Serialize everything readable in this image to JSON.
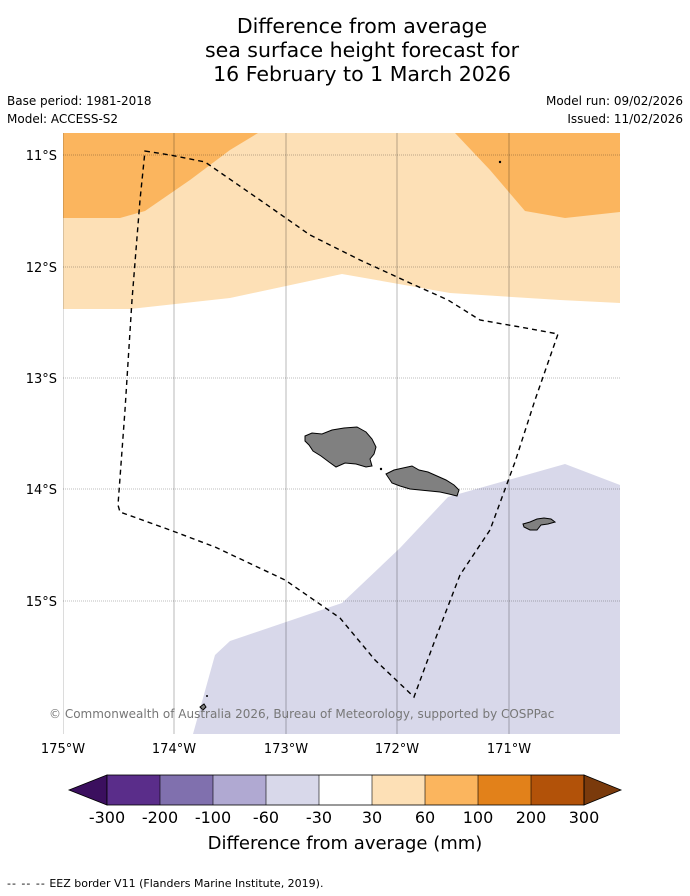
{
  "title": {
    "line1": "Difference from average",
    "line2": "sea surface height forecast for",
    "line3": "16 February to 1 March 2026"
  },
  "info": {
    "base_period": "Base period: 1981-2018",
    "model": "Model: ACCESS-S2",
    "model_run": "Model run: 09/02/2026",
    "issued": "Issued: 11/02/2026"
  },
  "map": {
    "lat_labels": [
      "11°S",
      "12°S",
      "13°S",
      "14°S",
      "15°S"
    ],
    "lon_labels": [
      "175°W",
      "174°W",
      "173°W",
      "172°W",
      "171°W"
    ],
    "copyright": "© Commonwealth of Australia 2026, Bureau of Meteorology, supported by COSPPac"
  },
  "colorbar": {
    "labels": [
      "-300",
      "-200",
      "-100",
      "-60",
      "-30",
      "30",
      "60",
      "100",
      "200",
      "300"
    ],
    "colors": [
      "#3b0f5e",
      "#5a2d8a",
      "#8070ae",
      "#b0a9d2",
      "#d8d8ea",
      "#ffffff",
      "#fde0b6",
      "#fbb55e",
      "#e2811a",
      "#b25209",
      "#7a3a0c"
    ],
    "title": "Difference from average (mm)"
  },
  "footer": {
    "eez_symbol": "-- -- --",
    "eez_legend": "EEZ border V11 (Flanders Marine Institute, 2019)."
  }
}
